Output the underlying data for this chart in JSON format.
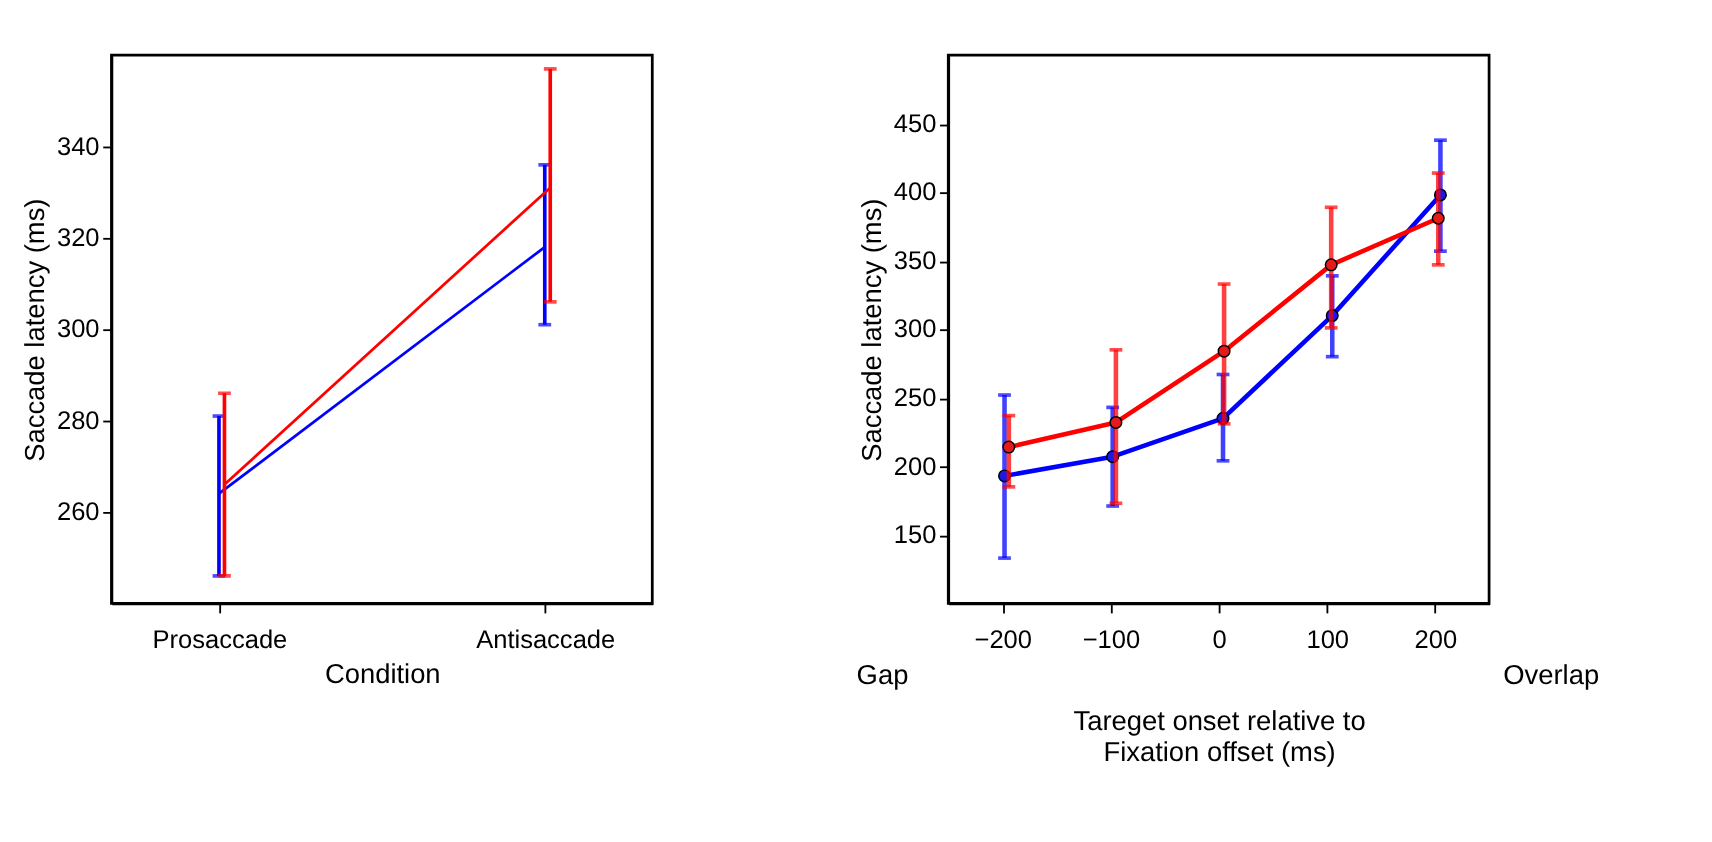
{
  "chart_data": [
    {
      "type": "line",
      "xlabel": "Condition",
      "ylabel": "Saccade latency (ms)",
      "categories": [
        "Prosaccade",
        "Antisaccade"
      ],
      "ylim": [
        240,
        360
      ],
      "yticks": [
        260,
        280,
        300,
        320,
        340
      ],
      "grid": false,
      "marker": "none",
      "line_style": "solid",
      "series": [
        {
          "color": "#0000ff",
          "values": [
            264,
            318
          ],
          "errors": [
            [
              246,
              281
            ],
            [
              301,
              336
            ]
          ]
        },
        {
          "color": "#ff0000",
          "values": [
            266,
            331
          ],
          "errors": [
            [
              246,
              286
            ],
            [
              306,
              357
            ]
          ]
        }
      ]
    },
    {
      "type": "line",
      "xlabel": "Tareget onset relative to\nFixation offset (ms)",
      "ylabel": "Saccade latency (ms)",
      "xlim": [
        -250,
        250
      ],
      "xticks": [
        -200,
        -100,
        0,
        100,
        200
      ],
      "ylim": [
        100,
        500
      ],
      "yticks": [
        150,
        200,
        250,
        300,
        350,
        400,
        450
      ],
      "grid": false,
      "marker": "circle",
      "line_style": "solid",
      "annotations": [
        "Gap",
        "Overlap"
      ],
      "series": [
        {
          "color": "#1a1ae6",
          "x": [
            -198,
            -98,
            4,
            105,
            205
          ],
          "values": [
            193,
            207,
            235,
            310,
            398
          ],
          "errors": [
            [
              133,
              252
            ],
            [
              171,
              243
            ],
            [
              204,
              267
            ],
            [
              280,
              339
            ],
            [
              357,
              438
            ]
          ]
        },
        {
          "color": "#e61a1a",
          "x": [
            -194,
            -95,
            5,
            104,
            203
          ],
          "values": [
            214,
            232,
            284,
            347,
            381
          ],
          "errors": [
            [
              185,
              237
            ],
            [
              173,
              285
            ],
            [
              231,
              333
            ],
            [
              301,
              389
            ],
            [
              347,
              414
            ]
          ]
        }
      ]
    }
  ]
}
